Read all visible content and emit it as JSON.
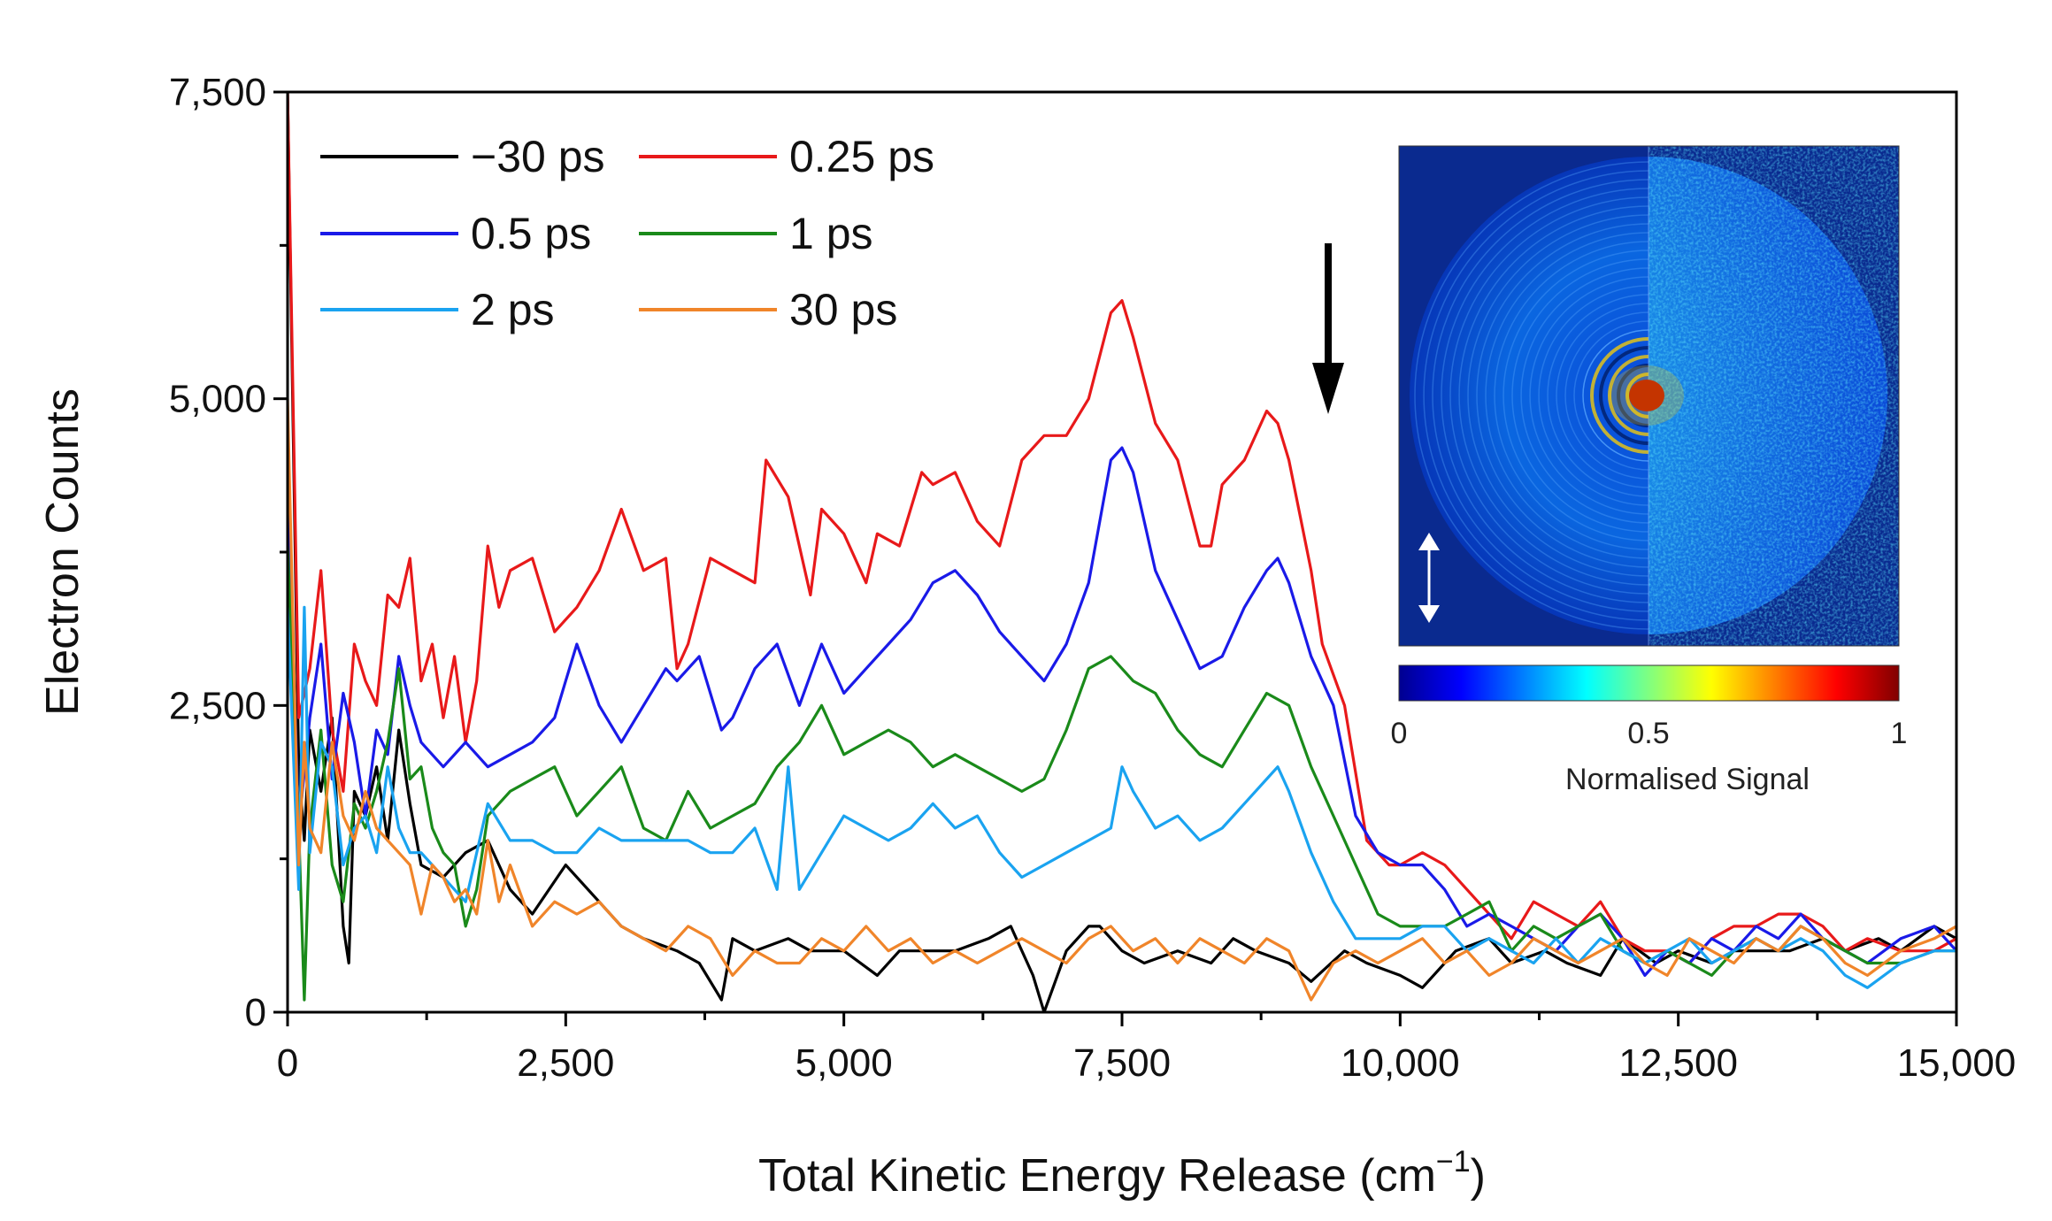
{
  "chart_data": {
    "type": "line",
    "xlabel": "Total Kinetic Energy Release (cm",
    "xlabel_sup": "−1",
    "xlabel_close": ")",
    "ylabel": "Electron Counts",
    "xlim": [
      0,
      15000
    ],
    "ylim": [
      0,
      7500
    ],
    "xticks": [
      0,
      2500,
      5000,
      7500,
      10000,
      12500,
      15000
    ],
    "xtick_labels": [
      "0",
      "2,500",
      "5,000",
      "7,500",
      "10,000",
      "12,500",
      "15,000"
    ],
    "yticks": [
      0,
      2500,
      5000,
      7500
    ],
    "ytick_labels": [
      "0",
      "2,500",
      "5,000",
      "7,500"
    ],
    "legend_location": "top-left",
    "series": [
      {
        "name": "−30 ps",
        "color": "#000000",
        "x": [
          0,
          100,
          150,
          200,
          300,
          400,
          500,
          550,
          600,
          700,
          800,
          900,
          1000,
          1100,
          1200,
          1400,
          1600,
          1800,
          2000,
          2200,
          2500,
          2800,
          3000,
          3200,
          3500,
          3700,
          3900,
          4000,
          4200,
          4500,
          4700,
          5000,
          5300,
          5500,
          5800,
          6000,
          6300,
          6500,
          6700,
          6800,
          7000,
          7200,
          7300,
          7500,
          7700,
          8000,
          8300,
          8500,
          8700,
          9000,
          9200,
          9500,
          9700,
          10000,
          10200,
          10500,
          10800,
          11000,
          11300,
          11500,
          11800,
          12000,
          12300,
          12500,
          12800,
          13000,
          13300,
          13500,
          13800,
          14000,
          14300,
          14500,
          14800,
          15000
        ],
        "y": [
          7500,
          2000,
          1400,
          2300,
          1800,
          2400,
          700,
          400,
          1800,
          1600,
          2000,
          1400,
          2300,
          1700,
          1200,
          1100,
          1300,
          1400,
          1000,
          800,
          1200,
          900,
          700,
          600,
          500,
          400,
          100,
          600,
          500,
          600,
          500,
          500,
          300,
          500,
          500,
          500,
          600,
          700,
          300,
          0,
          500,
          700,
          700,
          500,
          400,
          500,
          400,
          600,
          500,
          400,
          250,
          500,
          400,
          300,
          200,
          500,
          600,
          400,
          500,
          400,
          300,
          600,
          400,
          500,
          400,
          500,
          500,
          500,
          600,
          500,
          600,
          500,
          700,
          600
        ]
      },
      {
        "name": "0.25 ps",
        "color": "#e8191a",
        "x": [
          0,
          100,
          200,
          300,
          400,
          500,
          600,
          700,
          800,
          900,
          1000,
          1100,
          1200,
          1300,
          1400,
          1500,
          1600,
          1700,
          1800,
          1900,
          2000,
          2200,
          2400,
          2600,
          2800,
          3000,
          3200,
          3400,
          3500,
          3600,
          3800,
          4000,
          4200,
          4300,
          4500,
          4700,
          4800,
          5000,
          5200,
          5300,
          5500,
          5700,
          5800,
          6000,
          6200,
          6400,
          6600,
          6800,
          7000,
          7200,
          7400,
          7500,
          7600,
          7800,
          8000,
          8200,
          8300,
          8400,
          8600,
          8800,
          8900,
          9000,
          9200,
          9300,
          9500,
          9700,
          9900,
          10000,
          10200,
          10400,
          10600,
          10800,
          11000,
          11200,
          11400,
          11600,
          11800,
          12000,
          12200,
          12400,
          12600,
          12800,
          13000,
          13200,
          13400,
          13600,
          13800,
          14000,
          14200,
          14500,
          14800,
          15000
        ],
        "y": [
          7500,
          2400,
          2800,
          3600,
          2300,
          1800,
          3000,
          2700,
          2500,
          3400,
          3300,
          3700,
          2700,
          3000,
          2400,
          2900,
          2200,
          2700,
          3800,
          3300,
          3600,
          3700,
          3100,
          3300,
          3600,
          4100,
          3600,
          3700,
          2800,
          3000,
          3700,
          3600,
          3500,
          4500,
          4200,
          3400,
          4100,
          3900,
          3500,
          3900,
          3800,
          4400,
          4300,
          4400,
          4000,
          3800,
          4500,
          4700,
          4700,
          5000,
          5700,
          5800,
          5500,
          4800,
          4500,
          3800,
          3800,
          4300,
          4500,
          4900,
          4800,
          4500,
          3600,
          3000,
          2500,
          1400,
          1200,
          1200,
          1300,
          1200,
          1000,
          800,
          600,
          900,
          800,
          700,
          900,
          600,
          500,
          500,
          400,
          600,
          700,
          700,
          800,
          800,
          700,
          500,
          600,
          500,
          500,
          600
        ]
      },
      {
        "name": "0.5 ps",
        "color": "#1a1ae8",
        "x": [
          0,
          100,
          200,
          300,
          400,
          500,
          600,
          700,
          800,
          900,
          1000,
          1100,
          1200,
          1400,
          1600,
          1800,
          2000,
          2200,
          2400,
          2500,
          2600,
          2800,
          3000,
          3200,
          3400,
          3500,
          3700,
          3900,
          4000,
          4200,
          4400,
          4600,
          4800,
          5000,
          5200,
          5400,
          5600,
          5800,
          6000,
          6200,
          6400,
          6600,
          6800,
          7000,
          7200,
          7400,
          7500,
          7600,
          7800,
          8000,
          8200,
          8400,
          8600,
          8800,
          8900,
          9000,
          9200,
          9400,
          9600,
          9800,
          10000,
          10200,
          10400,
          10600,
          10800,
          11000,
          11200,
          11400,
          11600,
          11800,
          12000,
          12200,
          12400,
          12600,
          12800,
          13000,
          13200,
          13400,
          13600,
          13800,
          14000,
          14200,
          14500,
          14800,
          15000
        ],
        "y": [
          4500,
          1500,
          2400,
          3000,
          1900,
          2600,
          2200,
          1600,
          2300,
          2100,
          2900,
          2500,
          2200,
          2000,
          2200,
          2000,
          2100,
          2200,
          2400,
          2700,
          3000,
          2500,
          2200,
          2500,
          2800,
          2700,
          2900,
          2300,
          2400,
          2800,
          3000,
          2500,
          3000,
          2600,
          2800,
          3000,
          3200,
          3500,
          3600,
          3400,
          3100,
          2900,
          2700,
          3000,
          3500,
          4500,
          4600,
          4400,
          3600,
          3200,
          2800,
          2900,
          3300,
          3600,
          3700,
          3500,
          2900,
          2500,
          1600,
          1300,
          1200,
          1200,
          1000,
          700,
          800,
          700,
          600,
          500,
          700,
          800,
          600,
          300,
          500,
          400,
          600,
          500,
          700,
          600,
          800,
          600,
          500,
          400,
          600,
          700,
          500
        ]
      },
      {
        "name": "1 ps",
        "color": "#1a8a1a",
        "x": [
          0,
          100,
          150,
          200,
          300,
          400,
          500,
          600,
          700,
          800,
          900,
          1000,
          1100,
          1200,
          1300,
          1400,
          1500,
          1600,
          1700,
          1800,
          1900,
          2000,
          2200,
          2400,
          2600,
          2800,
          3000,
          3200,
          3400,
          3600,
          3800,
          4000,
          4200,
          4400,
          4600,
          4800,
          5000,
          5200,
          5400,
          5600,
          5800,
          6000,
          6200,
          6400,
          6600,
          6800,
          7000,
          7200,
          7400,
          7500,
          7600,
          7800,
          8000,
          8200,
          8400,
          8600,
          8800,
          9000,
          9200,
          9400,
          9600,
          9800,
          10000,
          10200,
          10400,
          10600,
          10800,
          11000,
          11200,
          11400,
          11600,
          11800,
          12000,
          12200,
          12400,
          12600,
          12800,
          13000,
          13200,
          13400,
          13600,
          13800,
          14000,
          14200,
          14500,
          14800,
          15000
        ],
        "y": [
          3800,
          1500,
          100,
          1500,
          2300,
          1200,
          900,
          1700,
          1500,
          1800,
          2200,
          2800,
          1900,
          2000,
          1500,
          1300,
          1200,
          700,
          1000,
          1600,
          1700,
          1800,
          1900,
          2000,
          1600,
          1800,
          2000,
          1500,
          1400,
          1800,
          1500,
          1600,
          1700,
          2000,
          2200,
          2500,
          2100,
          2200,
          2300,
          2200,
          2000,
          2100,
          2000,
          1900,
          1800,
          1900,
          2300,
          2800,
          2900,
          2800,
          2700,
          2600,
          2300,
          2100,
          2000,
          2300,
          2600,
          2500,
          2000,
          1600,
          1200,
          800,
          700,
          700,
          700,
          800,
          900,
          500,
          700,
          600,
          700,
          800,
          500,
          400,
          500,
          400,
          300,
          500,
          600,
          500,
          700,
          600,
          500,
          400,
          400,
          500,
          500
        ]
      },
      {
        "name": "2 ps",
        "color": "#1aa3f0",
        "x": [
          0,
          100,
          150,
          200,
          300,
          400,
          500,
          600,
          700,
          800,
          900,
          1000,
          1100,
          1200,
          1400,
          1600,
          1800,
          2000,
          2200,
          2400,
          2600,
          2800,
          3000,
          3200,
          3400,
          3600,
          3800,
          4000,
          4200,
          4400,
          4500,
          4600,
          4800,
          5000,
          5200,
          5400,
          5600,
          5800,
          6000,
          6200,
          6400,
          6600,
          6800,
          7000,
          7200,
          7400,
          7500,
          7600,
          7800,
          8000,
          8200,
          8400,
          8600,
          8800,
          8900,
          9000,
          9200,
          9400,
          9600,
          9800,
          10000,
          10200,
          10400,
          10600,
          10800,
          11000,
          11200,
          11400,
          11600,
          11800,
          12000,
          12200,
          12400,
          12600,
          12800,
          13000,
          13200,
          13400,
          13600,
          13800,
          14000,
          14200,
          14500,
          14800,
          15000
        ],
        "y": [
          3300,
          1000,
          3300,
          1300,
          2200,
          2000,
          1200,
          1500,
          1600,
          1300,
          2000,
          1500,
          1300,
          1300,
          1100,
          900,
          1700,
          1400,
          1400,
          1300,
          1300,
          1500,
          1400,
          1400,
          1400,
          1400,
          1300,
          1300,
          1500,
          1000,
          2000,
          1000,
          1300,
          1600,
          1500,
          1400,
          1500,
          1700,
          1500,
          1600,
          1300,
          1100,
          1200,
          1300,
          1400,
          1500,
          2000,
          1800,
          1500,
          1600,
          1400,
          1500,
          1700,
          1900,
          2000,
          1800,
          1300,
          900,
          600,
          600,
          600,
          700,
          700,
          500,
          600,
          500,
          400,
          600,
          400,
          600,
          500,
          400,
          500,
          600,
          400,
          500,
          600,
          500,
          600,
          500,
          300,
          200,
          400,
          500,
          500
        ]
      },
      {
        "name": "30 ps",
        "color": "#f0852a",
        "x": [
          0,
          100,
          150,
          200,
          300,
          400,
          500,
          600,
          700,
          800,
          900,
          1000,
          1100,
          1200,
          1300,
          1400,
          1500,
          1600,
          1700,
          1800,
          1900,
          2000,
          2200,
          2400,
          2600,
          2800,
          3000,
          3200,
          3400,
          3600,
          3800,
          4000,
          4200,
          4400,
          4600,
          4800,
          5000,
          5200,
          5400,
          5600,
          5800,
          6000,
          6200,
          6400,
          6600,
          6800,
          7000,
          7200,
          7400,
          7600,
          7800,
          8000,
          8200,
          8400,
          8600,
          8800,
          9000,
          9200,
          9400,
          9600,
          9800,
          10000,
          10200,
          10400,
          10600,
          10800,
          11000,
          11200,
          11400,
          11600,
          11800,
          12000,
          12200,
          12400,
          12600,
          12800,
          13000,
          13200,
          13400,
          13600,
          13800,
          14000,
          14200,
          14500,
          14800,
          15000
        ],
        "y": [
          5000,
          1200,
          2200,
          1500,
          1300,
          2200,
          1600,
          1400,
          1800,
          1500,
          1400,
          1300,
          1200,
          800,
          1200,
          1100,
          900,
          1000,
          800,
          1400,
          900,
          1200,
          700,
          900,
          800,
          900,
          700,
          600,
          500,
          700,
          600,
          300,
          500,
          400,
          400,
          600,
          500,
          700,
          500,
          600,
          400,
          500,
          400,
          500,
          600,
          500,
          400,
          600,
          700,
          500,
          600,
          400,
          600,
          500,
          400,
          600,
          500,
          100,
          400,
          500,
          400,
          500,
          600,
          400,
          500,
          300,
          400,
          600,
          500,
          400,
          500,
          600,
          400,
          300,
          600,
          500,
          400,
          600,
          500,
          700,
          600,
          400,
          300,
          500,
          600,
          700
        ]
      }
    ]
  },
  "inset": {
    "colorbar_ticks": [
      "0",
      "0.5",
      "1"
    ],
    "colorbar_label": "Normalised Signal",
    "colors": {
      "cbar_stops": [
        "#00008f",
        "#0000ff",
        "#0080ff",
        "#00ffff",
        "#80ff80",
        "#ffff00",
        "#ff8000",
        "#ff0000",
        "#800000"
      ],
      "image_bg": "#0a2a8f",
      "ring": "#0a66e0",
      "center": "#b00000"
    }
  }
}
